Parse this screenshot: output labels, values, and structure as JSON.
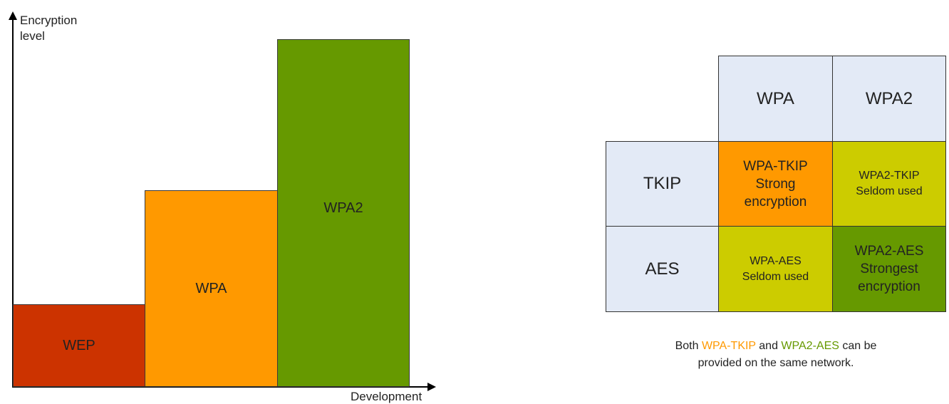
{
  "chart": {
    "y_axis_label_line1": "Encryption",
    "y_axis_label_line2": "level",
    "x_axis_label": "Development",
    "bars": [
      {
        "label": "WEP",
        "color": "#cc3300"
      },
      {
        "label": "WPA",
        "color": "#ff9900"
      },
      {
        "label": "WPA2",
        "color": "#669900"
      }
    ]
  },
  "table": {
    "columns": [
      "WPA",
      "WPA2"
    ],
    "rows": [
      "TKIP",
      "AES"
    ],
    "cells": {
      "tkip_wpa": [
        "WPA-TKIP",
        "Strong",
        "encryption"
      ],
      "tkip_wpa2": [
        "WPA2-TKIP",
        "Seldom used"
      ],
      "aes_wpa": [
        "WPA-AES",
        "Seldom used"
      ],
      "aes_wpa2": [
        "WPA2-AES",
        "Strongest",
        "encryption"
      ]
    },
    "header_color": "#e3eaf6"
  },
  "note": {
    "prefix": "Both",
    "highlight1": "WPA-TKIP",
    "middle": "and",
    "highlight2": "WPA2-AES",
    "suffix_line1": "can be",
    "line2": "provided on the same network.",
    "highlight1_color": "#ff9900",
    "highlight2_color": "#669900"
  }
}
